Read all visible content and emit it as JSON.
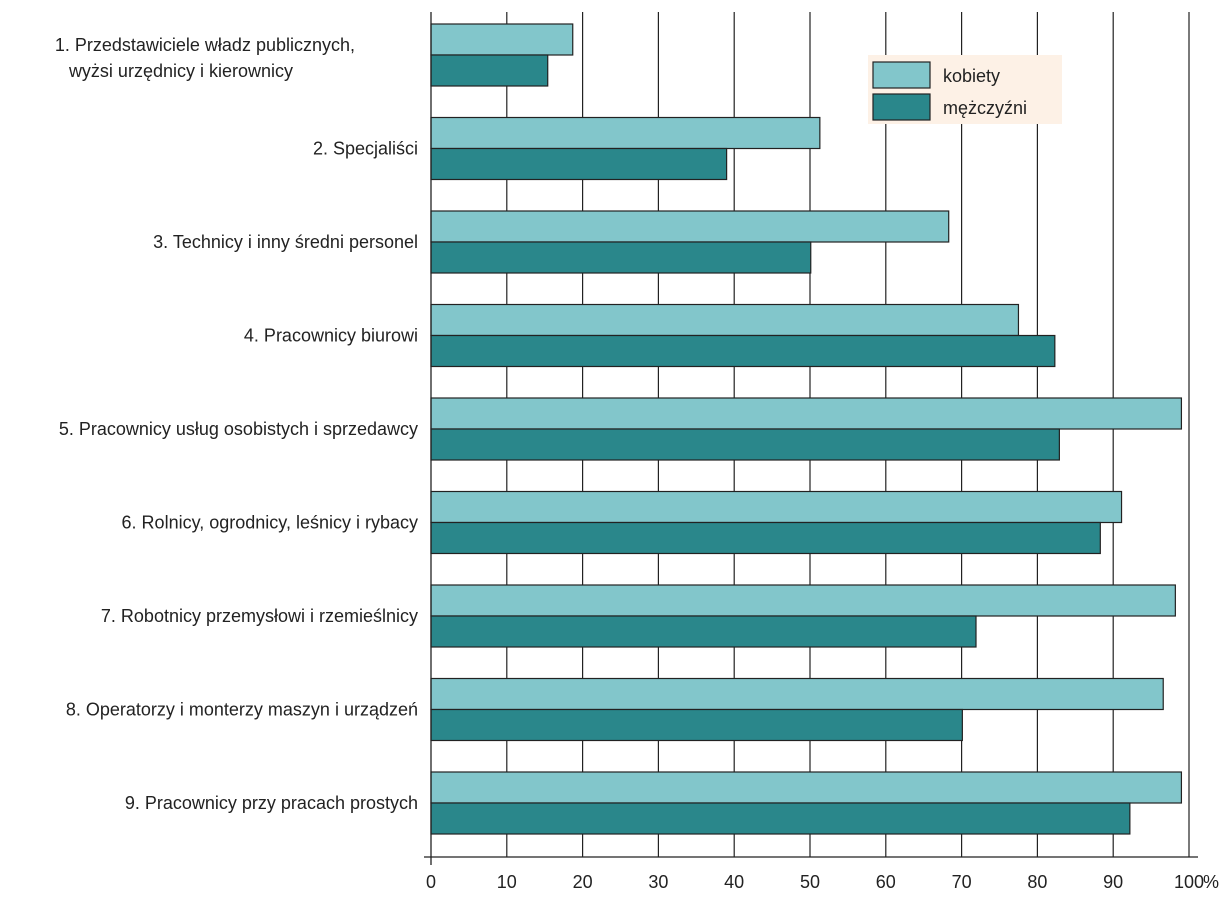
{
  "chart_data": {
    "type": "bar",
    "orientation": "horizontal",
    "categories": [
      [
        "1. Przedstawiciele władz publicznych,",
        "wyżsi urzędnicy i kierownicy"
      ],
      [
        "2. Specjaliści"
      ],
      [
        "3. Technicy i inny średni personel"
      ],
      [
        "4. Pracownicy biurowi"
      ],
      [
        "5. Pracownicy usług osobistych i sprzedawcy"
      ],
      [
        "6. Rolnicy, ogrodnicy, leśnicy i rybacy"
      ],
      [
        "7. Robotnicy przemysłowi i rzemieślnicy"
      ],
      [
        "8. Operatorzy i monterzy maszyn i urządzeń"
      ],
      [
        "9. Pracownicy przy pracach prostych"
      ]
    ],
    "series": [
      {
        "name": "kobiety",
        "color": "#82c6cb",
        "values": [
          18.7,
          51.3,
          68.3,
          77.5,
          99.0,
          91.1,
          98.2,
          96.6,
          99.0
        ]
      },
      {
        "name": "mężczyźni",
        "color": "#2a878b",
        "values": [
          15.4,
          39.0,
          50.1,
          82.3,
          82.9,
          88.3,
          71.9,
          70.1,
          92.2
        ]
      }
    ],
    "xlim": [
      0,
      100
    ],
    "xticks": [
      "0",
      "10",
      "20",
      "30",
      "40",
      "50",
      "60",
      "70",
      "80",
      "90",
      "100"
    ],
    "xunit": "%",
    "grid": "vertical",
    "legend": {
      "position": "top-right",
      "background": "#fdf1e6"
    },
    "title": "",
    "xlabel": "",
    "ylabel": ""
  }
}
